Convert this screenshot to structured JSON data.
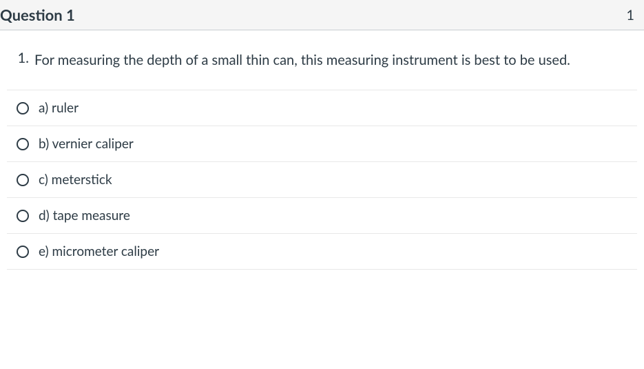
{
  "header": {
    "title": "Question 1",
    "points": "1"
  },
  "prompt": {
    "number": "1.",
    "text": "For measuring the depth of a small thin can, this measuring instrument is best to be used."
  },
  "options": [
    {
      "label": "a) ruler"
    },
    {
      "label": "b) vernier caliper"
    },
    {
      "label": "c) meterstick"
    },
    {
      "label": "d) tape measure"
    },
    {
      "label": "e) micrometer caliper"
    }
  ],
  "colors": {
    "text": "#2d3b45",
    "header_bg": "#f5f5f5",
    "divider": "#e8e8e8",
    "header_border": "#c7cdd1"
  }
}
